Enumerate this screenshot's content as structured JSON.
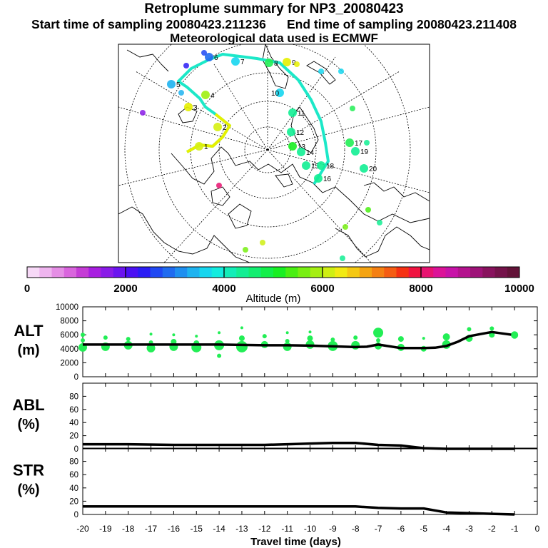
{
  "header": {
    "title": "Retroplume summary for NP3_20080423",
    "start_label": "Start time of sampling 20080423.211236",
    "end_label": "End time of sampling 20080423.211408",
    "met_label": "Meteorological data used is ECMWF"
  },
  "map": {
    "description_icon": "polar-stereographic-map",
    "day_labels": [
      "1",
      "2",
      "3",
      "4",
      "5",
      "6",
      "7",
      "8",
      "9",
      "10",
      "11",
      "12",
      "13",
      "14",
      "15",
      "16",
      "17",
      "18",
      "19",
      "20"
    ]
  },
  "colorbar": {
    "ticks": [
      "0",
      "2000",
      "4000",
      "6000",
      "8000",
      "10000"
    ],
    "label": "Altitude (m)",
    "colors": [
      "#f7d9f7",
      "#efb5ef",
      "#e58ee5",
      "#d965dd",
      "#c53cd6",
      "#a81fe0",
      "#8a1be8",
      "#6b14ef",
      "#4b10f3",
      "#2a1cf5",
      "#1f48f3",
      "#1f6bf0",
      "#1e8ff0",
      "#1eb3f0",
      "#16d6ef",
      "#12ecdf",
      "#12edb8",
      "#12ee93",
      "#12ee70",
      "#12ef4a",
      "#18ef22",
      "#49ef12",
      "#78ef12",
      "#a5ef12",
      "#cfef12",
      "#f2ea12",
      "#f5c812",
      "#f5a412",
      "#f58012",
      "#f55c12",
      "#f53012",
      "#f01240",
      "#e81270",
      "#dc1298",
      "#c812a8",
      "#b4128e",
      "#9e1278",
      "#88125e",
      "#74124a",
      "#621238"
    ]
  },
  "panels": {
    "alt": {
      "label_line1": "ALT",
      "label_line2": "(m)",
      "ticks": [
        "0",
        "2000",
        "4000",
        "6000",
        "8000",
        "10000"
      ]
    },
    "abl": {
      "label_line1": "ABL",
      "label_line2": "(%)",
      "ticks": [
        "0",
        "20",
        "40",
        "60",
        "80"
      ]
    },
    "str": {
      "label_line1": "STR",
      "label_line2": "(%)",
      "ticks": [
        "0",
        "20",
        "40",
        "60",
        "80"
      ]
    },
    "x_ticks": [
      "-20",
      "-19",
      "-18",
      "-17",
      "-16",
      "-15",
      "-14",
      "-13",
      "-12",
      "-11",
      "-10",
      "-9",
      "-8",
      "-7",
      "-6",
      "-5",
      "-4",
      "-3",
      "-2",
      "-1",
      "0"
    ],
    "xlabel": "Travel time (days)"
  },
  "chart_data": [
    {
      "type": "line",
      "name": "ALT",
      "title": "Retroplume summary for NP3_20080423",
      "xlabel": "Travel time (days)",
      "ylabel": "ALT (m)",
      "xlim": [
        -20,
        0
      ],
      "ylim": [
        0,
        10000
      ],
      "x": [
        -20,
        -19,
        -18,
        -17,
        -16,
        -15,
        -14,
        -13,
        -12,
        -11,
        -10,
        -9,
        -8,
        -7.5,
        -7,
        -6,
        -5,
        -4.5,
        -4,
        -3.5,
        -3,
        -2.5,
        -2,
        -1
      ],
      "values": [
        4600,
        4600,
        4600,
        4600,
        4600,
        4600,
        4600,
        4550,
        4500,
        4500,
        4450,
        4350,
        4250,
        4300,
        4600,
        4100,
        4100,
        4150,
        4400,
        5000,
        5800,
        6100,
        6400,
        5950
      ],
      "series_marker": {
        "name": "cluster altitudes",
        "color": "#22ee55",
        "x": [
          -20,
          -20,
          -20,
          -19,
          -19,
          -18,
          -18,
          -17,
          -17,
          -17,
          -16,
          -16,
          -16,
          -15,
          -15,
          -15,
          -14,
          -14,
          -14,
          -13,
          -13,
          -13,
          -12,
          -12,
          -11,
          -11,
          -11,
          -10,
          -10,
          -10,
          -9,
          -9,
          -8,
          -8,
          -7,
          -7,
          -7,
          -6,
          -6,
          -5,
          -5,
          -4,
          -4,
          -3,
          -3,
          -2,
          -2,
          -1
        ],
        "y": [
          4200,
          5200,
          6000,
          4300,
          5600,
          4500,
          5400,
          4100,
          4900,
          6100,
          4300,
          5000,
          6000,
          4200,
          4800,
          5800,
          4500,
          6300,
          3000,
          4300,
          5500,
          7000,
          4600,
          5800,
          4300,
          5100,
          6300,
          4600,
          5500,
          6400,
          4400,
          5300,
          4500,
          5600,
          4400,
          6300,
          5200,
          4200,
          5400,
          4000,
          5500,
          4600,
          5700,
          5500,
          6800,
          6000,
          6900,
          6000
        ],
        "size": [
          6,
          3,
          3,
          6,
          3,
          6,
          3,
          6,
          3,
          2,
          6,
          4,
          2,
          7,
          4,
          2,
          7,
          2,
          3,
          8,
          4,
          2,
          5,
          3,
          6,
          3,
          2,
          6,
          4,
          2,
          7,
          3,
          6,
          3,
          5,
          7,
          3,
          5,
          4,
          4,
          2,
          6,
          5,
          5,
          3,
          4,
          3,
          5
        ]
      }
    },
    {
      "type": "line",
      "name": "ABL",
      "ylabel": "ABL (%)",
      "xlim": [
        -20,
        0
      ],
      "ylim": [
        0,
        100
      ],
      "x": [
        -20,
        -18,
        -16,
        -14,
        -12,
        -11,
        -10,
        -9,
        -8,
        -7,
        -6,
        -5.5,
        -5,
        -4,
        -3,
        -2,
        -1
      ],
      "values": [
        7,
        7,
        6,
        6,
        6,
        7,
        8,
        9,
        9,
        6,
        5,
        3,
        1,
        0,
        0,
        0,
        0
      ]
    },
    {
      "type": "line",
      "name": "STR",
      "ylabel": "STR (%)",
      "xlim": [
        -20,
        0
      ],
      "ylim": [
        0,
        100
      ],
      "x": [
        -20,
        -18,
        -16,
        -14,
        -12,
        -10,
        -8,
        -7,
        -6,
        -5,
        -4,
        -3,
        -2,
        -1
      ],
      "values": [
        12,
        12,
        12,
        12,
        12,
        12,
        12,
        10,
        9,
        9,
        3,
        2,
        1,
        0
      ]
    }
  ]
}
